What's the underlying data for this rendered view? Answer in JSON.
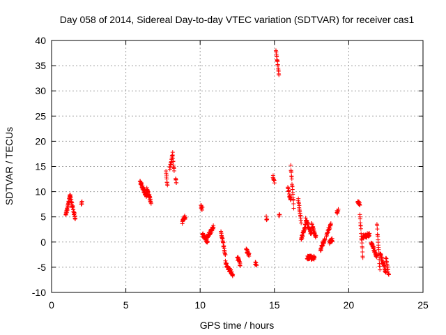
{
  "chart_data": {
    "type": "scatter",
    "title": "Day 058 of 2014, Sidereal Day-to-day VTEC variation (SDTVAR) for receiver cas1",
    "xlabel": "GPS time / hours",
    "ylabel": "SDTVAR / TECUs",
    "xlim": [
      0,
      25
    ],
    "ylim": [
      -10,
      40
    ],
    "xticks": [
      0,
      5,
      10,
      15,
      20,
      25
    ],
    "yticks": [
      -10,
      -5,
      0,
      5,
      10,
      15,
      20,
      25,
      30,
      35,
      40
    ],
    "xtick_labels": [
      "0",
      "5",
      "10",
      "15",
      "20",
      "25"
    ],
    "ytick_labels": [
      "-10",
      "-5",
      "0",
      "5",
      "10",
      "15",
      "20",
      "25",
      "30",
      "35",
      "40"
    ],
    "grid": true,
    "marker": "+",
    "color": "#ff0000",
    "segments": [
      {
        "x0": 0.95,
        "x1": 1.05,
        "y0": 5.5,
        "y1": 6.5
      },
      {
        "x0": 1.05,
        "x1": 1.25,
        "y0": 6.5,
        "y1": 9.3
      },
      {
        "x0": 1.25,
        "x1": 1.4,
        "y0": 9.3,
        "y1": 7.0
      },
      {
        "x0": 1.4,
        "x1": 1.6,
        "y0": 7.0,
        "y1": 4.7
      },
      {
        "x0": 2.0,
        "x1": 2.05,
        "y0": 7.5,
        "y1": 7.7
      },
      {
        "x0": 5.95,
        "x1": 6.4,
        "y0": 12.0,
        "y1": 9.0
      },
      {
        "x0": 6.4,
        "x1": 6.7,
        "y0": 10.5,
        "y1": 8.0
      },
      {
        "x0": 7.7,
        "x1": 7.8,
        "y0": 14.0,
        "y1": 11.0
      },
      {
        "x0": 7.95,
        "x1": 8.15,
        "y0": 14.5,
        "y1": 17.5
      },
      {
        "x0": 8.15,
        "x1": 8.25,
        "y0": 17.0,
        "y1": 14.0
      },
      {
        "x0": 8.35,
        "x1": 8.4,
        "y0": 12.3,
        "y1": 12.1
      },
      {
        "x0": 8.8,
        "x1": 9.0,
        "y0": 4.0,
        "y1": 5.0
      },
      {
        "x0": 10.05,
        "x1": 10.15,
        "y0": 7.0,
        "y1": 6.5
      },
      {
        "x0": 10.15,
        "x1": 10.5,
        "y0": 1.5,
        "y1": 0.0
      },
      {
        "x0": 10.5,
        "x1": 10.9,
        "y0": 1.0,
        "y1": 3.0
      },
      {
        "x0": 11.4,
        "x1": 11.7,
        "y0": 2.0,
        "y1": -2.5
      },
      {
        "x0": 11.7,
        "x1": 12.0,
        "y0": -4.0,
        "y1": -6.0
      },
      {
        "x0": 12.0,
        "x1": 12.2,
        "y0": -5.5,
        "y1": -6.5
      },
      {
        "x0": 12.5,
        "x1": 12.7,
        "y0": -3.0,
        "y1": -4.5
      },
      {
        "x0": 13.1,
        "x1": 13.3,
        "y0": -1.5,
        "y1": -2.5
      },
      {
        "x0": 13.7,
        "x1": 13.8,
        "y0": -4.0,
        "y1": -4.5
      },
      {
        "x0": 14.45,
        "x1": 14.5,
        "y0": 4.8,
        "y1": 4.6
      },
      {
        "x0": 14.9,
        "x1": 15.0,
        "y0": 13.0,
        "y1": 12.0
      },
      {
        "x0": 15.1,
        "x1": 15.3,
        "y0": 38.0,
        "y1": 33.5
      },
      {
        "x0": 15.3,
        "x1": 15.35,
        "y0": 5.4,
        "y1": 5.3
      },
      {
        "x0": 15.9,
        "x1": 16.1,
        "y0": 11.0,
        "y1": 8.0
      },
      {
        "x0": 16.1,
        "x1": 16.3,
        "y0": 15.0,
        "y1": 7.0
      },
      {
        "x0": 16.6,
        "x1": 16.8,
        "y0": 8.5,
        "y1": 4.0
      },
      {
        "x0": 16.8,
        "x1": 17.1,
        "y0": 0.5,
        "y1": 3.5
      },
      {
        "x0": 17.1,
        "x1": 17.5,
        "y0": 4.5,
        "y1": 1.5
      },
      {
        "x0": 17.2,
        "x1": 17.7,
        "y0": -3.0,
        "y1": -3.1
      },
      {
        "x0": 17.5,
        "x1": 17.8,
        "y0": 3.5,
        "y1": 1.0
      },
      {
        "x0": 18.1,
        "x1": 18.4,
        "y0": -1.5,
        "y1": 0.5
      },
      {
        "x0": 18.5,
        "x1": 18.8,
        "y0": 1.5,
        "y1": 3.5
      },
      {
        "x0": 18.7,
        "x1": 18.9,
        "y0": 0.0,
        "y1": 0.5
      },
      {
        "x0": 19.2,
        "x1": 19.3,
        "y0": 5.8,
        "y1": 6.3
      },
      {
        "x0": 20.6,
        "x1": 20.75,
        "y0": 8.0,
        "y1": 7.5
      },
      {
        "x0": 20.75,
        "x1": 20.95,
        "y0": 5.5,
        "y1": -3.0
      },
      {
        "x0": 20.95,
        "x1": 21.4,
        "y0": 1.0,
        "y1": 1.5
      },
      {
        "x0": 21.5,
        "x1": 21.9,
        "y0": 0.0,
        "y1": -3.0
      },
      {
        "x0": 21.9,
        "x1": 22.1,
        "y0": 3.5,
        "y1": -5.5
      },
      {
        "x0": 22.1,
        "x1": 22.5,
        "y0": -2.0,
        "y1": -6.0
      },
      {
        "x0": 22.5,
        "x1": 22.7,
        "y0": -3.0,
        "y1": -6.5
      }
    ]
  }
}
